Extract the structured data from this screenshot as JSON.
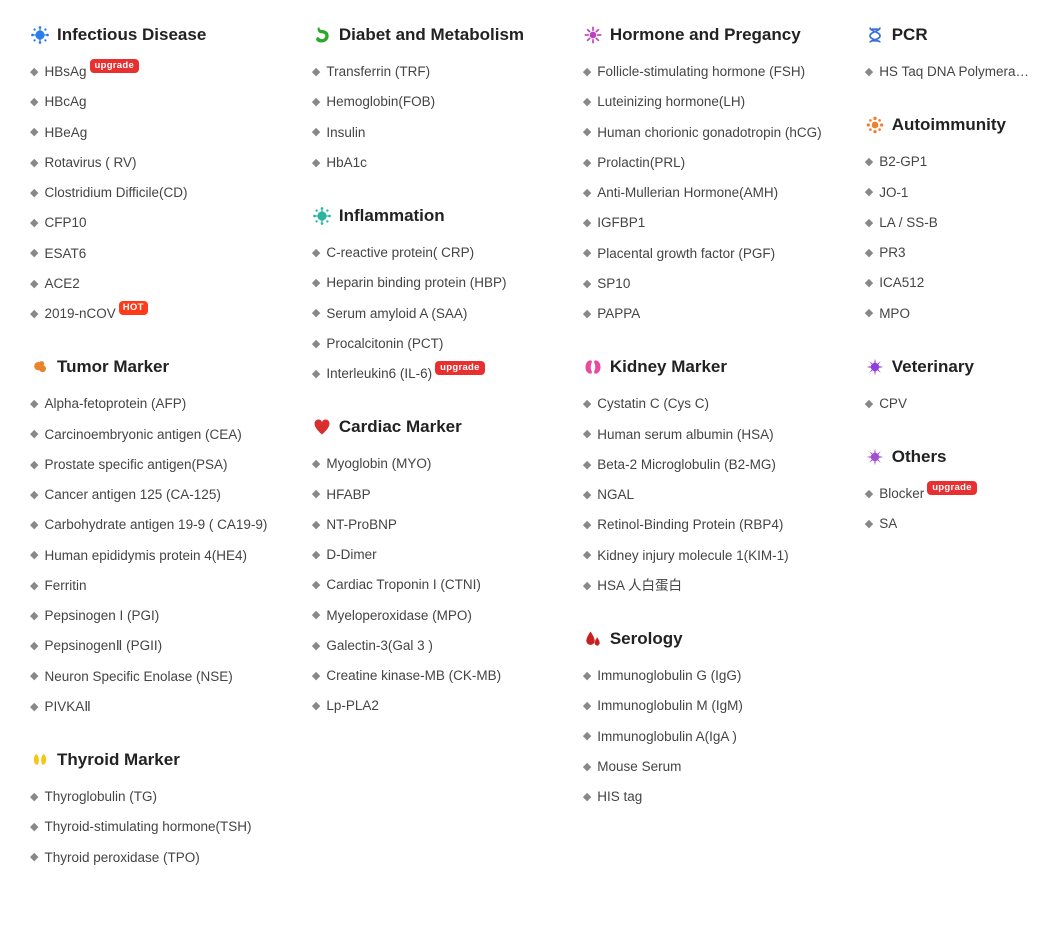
{
  "badges": {
    "upgrade": "upgrade",
    "hot": "HOT"
  },
  "icon_colors": {
    "virus_blue": "#2b7de9",
    "tumor_orange": "#e8842b",
    "thyroid_yellow": "#f5c518",
    "stomach_green": "#2aa82a",
    "inflammation_teal": "#2bb5a0",
    "heart_red": "#d83030",
    "hormone_purple": "#c040c0",
    "kidney_pink": "#e84a9c",
    "blood_red": "#c82020",
    "dna_blue": "#3a6fd8",
    "autoimmune_orange": "#f08030",
    "vet_purple": "#9040d8",
    "other_purple": "#a050d0"
  },
  "columns": [
    [
      {
        "title": "Infectious Disease",
        "icon": "virus",
        "icon_color_key": "virus_blue",
        "items": [
          {
            "label": "HBsAg",
            "badge": "upgrade"
          },
          {
            "label": "HBcAg"
          },
          {
            "label": "HBeAg"
          },
          {
            "label": "Rotavirus ( RV)"
          },
          {
            "label": "Clostridium Difficile(CD)"
          },
          {
            "label": "CFP10"
          },
          {
            "label": "ESAT6"
          },
          {
            "label": "ACE2"
          },
          {
            "label": "2019-nCOV",
            "badge": "hot"
          }
        ]
      },
      {
        "title": "Tumor Marker",
        "icon": "tumor",
        "icon_color_key": "tumor_orange",
        "items": [
          {
            "label": "Alpha-fetoprotein (AFP)"
          },
          {
            "label": "Carcinoembryonic antigen (CEA)"
          },
          {
            "label": "Prostate specific antigen(PSA)"
          },
          {
            "label": "Cancer antigen 125 (CA-125)"
          },
          {
            "label": "Carbohydrate antigen 19-9 ( CA19-9)"
          },
          {
            "label": "Human epididymis protein 4(HE4)"
          },
          {
            "label": "Ferritin"
          },
          {
            "label": "Pepsinogen I (PGI)"
          },
          {
            "label": "PepsinogenⅡ (PGII)"
          },
          {
            "label": "Neuron Specific Enolase (NSE)"
          },
          {
            "label": "PIVKAⅡ"
          }
        ]
      },
      {
        "title": "Thyroid Marker",
        "icon": "thyroid",
        "icon_color_key": "thyroid_yellow",
        "items": [
          {
            "label": "Thyroglobulin (TG)"
          },
          {
            "label": "Thyroid-stimulating hormone(TSH)"
          },
          {
            "label": "Thyroid peroxidase (TPO)"
          }
        ]
      }
    ],
    [
      {
        "title": "Diabet and Metabolism",
        "icon": "stomach",
        "icon_color_key": "stomach_green",
        "items": [
          {
            "label": "Transferrin (TRF)"
          },
          {
            "label": "Hemoglobin(FOB)"
          },
          {
            "label": "Insulin"
          },
          {
            "label": "HbA1c"
          }
        ]
      },
      {
        "title": "Inflammation",
        "icon": "virus",
        "icon_color_key": "inflammation_teal",
        "items": [
          {
            "label": "C-reactive protein( CRP)"
          },
          {
            "label": "Heparin binding protein (HBP)"
          },
          {
            "label": "Serum amyloid A (SAA)"
          },
          {
            "label": "Procalcitonin (PCT)"
          },
          {
            "label": "Interleukin6 (IL-6)",
            "badge": "upgrade"
          }
        ]
      },
      {
        "title": "Cardiac Marker",
        "icon": "heart",
        "icon_color_key": "heart_red",
        "items": [
          {
            "label": "Myoglobin (MYO)"
          },
          {
            "label": "HFABP"
          },
          {
            "label": "NT-ProBNP"
          },
          {
            "label": "D-Dimer"
          },
          {
            "label": "Cardiac Troponin I (CTNI)"
          },
          {
            "label": "Myeloperoxidase (MPO)"
          },
          {
            "label": "Galectin-3(Gal 3 )"
          },
          {
            "label": "Creatine kinase-MB (CK-MB)"
          },
          {
            "label": "Lp-PLA2"
          }
        ]
      }
    ],
    [
      {
        "title": "Hormone and Pregancy",
        "icon": "hormone",
        "icon_color_key": "hormone_purple",
        "items": [
          {
            "label": "Follicle-stimulating hormone (FSH)"
          },
          {
            "label": "Luteinizing hormone(LH)"
          },
          {
            "label": "Human chorionic gonadotropin (hCG)"
          },
          {
            "label": "Prolactin(PRL)"
          },
          {
            "label": "Anti-Mullerian Hormone(AMH)"
          },
          {
            "label": "IGFBP1"
          },
          {
            "label": "Placental growth factor (PGF)"
          },
          {
            "label": "SP10"
          },
          {
            "label": "PAPPA"
          }
        ]
      },
      {
        "title": "Kidney Marker",
        "icon": "kidney",
        "icon_color_key": "kidney_pink",
        "items": [
          {
            "label": "Cystatin C (Cys C)"
          },
          {
            "label": "Human serum albumin (HSA)"
          },
          {
            "label": "Beta-2 Microglobulin (B2-MG)"
          },
          {
            "label": "NGAL"
          },
          {
            "label": "Retinol-Binding Protein (RBP4)"
          },
          {
            "label": "Kidney injury molecule 1(KIM-1)"
          },
          {
            "label": "HSA 人白蛋白"
          }
        ]
      },
      {
        "title": "Serology",
        "icon": "blood",
        "icon_color_key": "blood_red",
        "items": [
          {
            "label": "Immunoglobulin G (IgG)"
          },
          {
            "label": "Immunoglobulin M (IgM)"
          },
          {
            "label": "Immunoglobulin A(IgA )"
          },
          {
            "label": "Mouse Serum"
          },
          {
            "label": "HIS tag"
          }
        ]
      }
    ],
    [
      {
        "title": "PCR",
        "icon": "dna",
        "icon_color_key": "dna_blue",
        "items": [
          {
            "label": "HS Taq DNA Polymerase"
          }
        ]
      },
      {
        "title": "Autoimmunity",
        "icon": "autoimmune",
        "icon_color_key": "autoimmune_orange",
        "items": [
          {
            "label": "B2-GP1"
          },
          {
            "label": "JO-1"
          },
          {
            "label": "LA / SS-B"
          },
          {
            "label": "PR3"
          },
          {
            "label": "ICA512"
          },
          {
            "label": "MPO"
          }
        ]
      },
      {
        "title": "Veterinary",
        "icon": "spike",
        "icon_color_key": "vet_purple",
        "items": [
          {
            "label": "CPV"
          }
        ]
      },
      {
        "title": "Others",
        "icon": "spike",
        "icon_color_key": "other_purple",
        "items": [
          {
            "label": "Blocker",
            "badge": "upgrade"
          },
          {
            "label": "SA"
          }
        ]
      }
    ]
  ]
}
